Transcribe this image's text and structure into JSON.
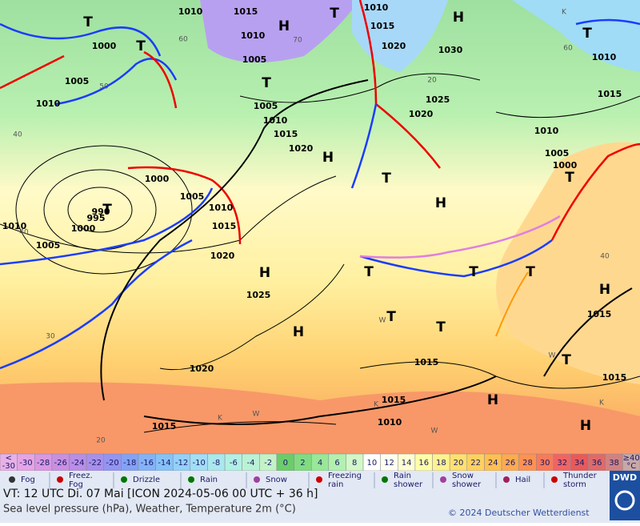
{
  "map": {
    "isobar_labels": [
      "1010",
      "1015",
      "1010",
      "1015",
      "1020",
      "1030",
      "1010",
      "1005",
      "1000",
      "1005",
      "1010",
      "1005",
      "1010",
      "1015",
      "1020",
      "1025",
      "1020",
      "1010",
      "1005",
      "1000",
      "1015",
      "1010",
      "1000",
      "1005",
      "1010",
      "1015",
      "1020",
      "990",
      "995",
      "1000",
      "1010",
      "1005",
      "1025",
      "1020",
      "1015",
      "1015",
      "1010",
      "1015",
      "1015",
      "1015"
    ],
    "pressure_centers": [
      "T",
      "H",
      "T",
      "H",
      "T",
      "T",
      "T",
      "H",
      "T",
      "H",
      "T",
      "T",
      "H",
      "H",
      "T",
      "T",
      "T",
      "T",
      "H",
      "H",
      "H",
      "T",
      "T"
    ],
    "temperature_labels": [
      "40",
      "50",
      "60",
      "30",
      "20",
      "40",
      "60",
      "70",
      "40",
      "20"
    ],
    "weather_letters": [
      "W",
      "K",
      "W",
      "K",
      "W",
      "W",
      "K",
      "K"
    ]
  },
  "legend": {
    "low": [
      "<",
      "-30"
    ],
    "high": [
      "≥40",
      "°C"
    ],
    "steps": [
      -30,
      -28,
      -26,
      -24,
      -22,
      -20,
      -18,
      -16,
      -14,
      -12,
      -10,
      -8,
      -6,
      -4,
      -2,
      0,
      2,
      4,
      6,
      8,
      10,
      12,
      14,
      16,
      18,
      20,
      22,
      24,
      26,
      28,
      30,
      32,
      34,
      36,
      38
    ],
    "low_color": "#e8b0e8",
    "high_color": "#c8a8a8",
    "colors": [
      "#e4a4e6",
      "#d898e2",
      "#c890e0",
      "#b88ee6",
      "#a890ea",
      "#9494f2",
      "#84a2f4",
      "#84b2f8",
      "#86c2f8",
      "#94d0f8",
      "#a2def6",
      "#aae8ee",
      "#b2f0e4",
      "#baf2d6",
      "#c4f2c8",
      "#6ccc6c",
      "#80dc80",
      "#98e898",
      "#b2f0b0",
      "#d2f8c8",
      "#ffffff",
      "#fffff0",
      "#ffffd2",
      "#ffffaa",
      "#fff290",
      "#ffe070",
      "#ffd062",
      "#ffc052",
      "#ffaa50",
      "#ff9252",
      "#f87a5a",
      "#f06464",
      "#e85a5a",
      "#de6a6a",
      "#d08282"
    ],
    "symbols": [
      [
        "Fog"
      ],
      [
        "Freez.",
        "Fog"
      ],
      [
        "Drizzle"
      ],
      [
        "Rain"
      ],
      [
        "Snow"
      ],
      [
        "Freezing",
        "rain"
      ],
      [
        "Rain",
        "shower"
      ],
      [
        "Snow",
        "shower"
      ],
      [
        "Hail"
      ],
      [
        "Thunder",
        "storm"
      ]
    ]
  },
  "footer": {
    "valid_time": "VT: 12 UTC Di.  07 Mai [ICON 2024-05-06  00 UTC + 36 h]",
    "description": "Sea level pressure (hPa), Weather, Temperature 2m (°C)",
    "copyright": "© 2024 Deutscher Wetterdienst",
    "logo": "DWD"
  }
}
